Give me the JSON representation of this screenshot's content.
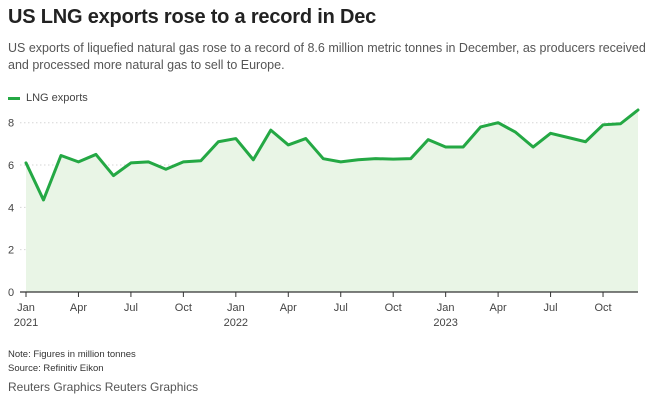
{
  "title": "US LNG exports rose to a record in Dec",
  "subtitle": "US exports of liquefied natural gas rose to a record of 8.6 million metric tonnes in December, as producers received and processed more natural gas to sell to Europe.",
  "note": "Note: Figures in million tonnes",
  "source": "Source: Refinitiv Eikon",
  "credit": "Reuters Graphics Reuters Graphics",
  "colors": {
    "line": "#24a844",
    "fill": "#e9f5e6",
    "grid": "#d6d6d6",
    "axis": "#333333"
  },
  "chart_data": {
    "type": "area",
    "series": [
      {
        "name": "LNG exports",
        "values": [
          6.1,
          4.35,
          6.45,
          6.15,
          6.5,
          5.5,
          6.1,
          6.15,
          5.8,
          6.15,
          6.2,
          7.1,
          7.25,
          6.25,
          7.65,
          6.95,
          7.25,
          6.3,
          6.15,
          6.25,
          6.3,
          6.28,
          6.3,
          7.2,
          6.85,
          6.85,
          7.8,
          8.0,
          7.55,
          6.85,
          7.5,
          7.3,
          7.1,
          7.9,
          7.95,
          8.6
        ]
      }
    ],
    "x_start": "2021-01",
    "x_end": "2023-12",
    "ylim": [
      0,
      8.6
    ],
    "yticks": [
      0,
      2,
      4,
      6,
      8
    ],
    "xticks": [
      {
        "label": "Jan",
        "sub": "2021",
        "month_index": 0
      },
      {
        "label": "Apr",
        "sub": "",
        "month_index": 3
      },
      {
        "label": "Jul",
        "sub": "",
        "month_index": 6
      },
      {
        "label": "Oct",
        "sub": "",
        "month_index": 9
      },
      {
        "label": "Jan",
        "sub": "2022",
        "month_index": 12
      },
      {
        "label": "Apr",
        "sub": "",
        "month_index": 15
      },
      {
        "label": "Jul",
        "sub": "",
        "month_index": 18
      },
      {
        "label": "Oct",
        "sub": "",
        "month_index": 21
      },
      {
        "label": "Jan",
        "sub": "2023",
        "month_index": 24
      },
      {
        "label": "Apr",
        "sub": "",
        "month_index": 27
      },
      {
        "label": "Jul",
        "sub": "",
        "month_index": 30
      },
      {
        "label": "Oct",
        "sub": "",
        "month_index": 33
      }
    ],
    "grid": true,
    "legend": "top-left"
  }
}
